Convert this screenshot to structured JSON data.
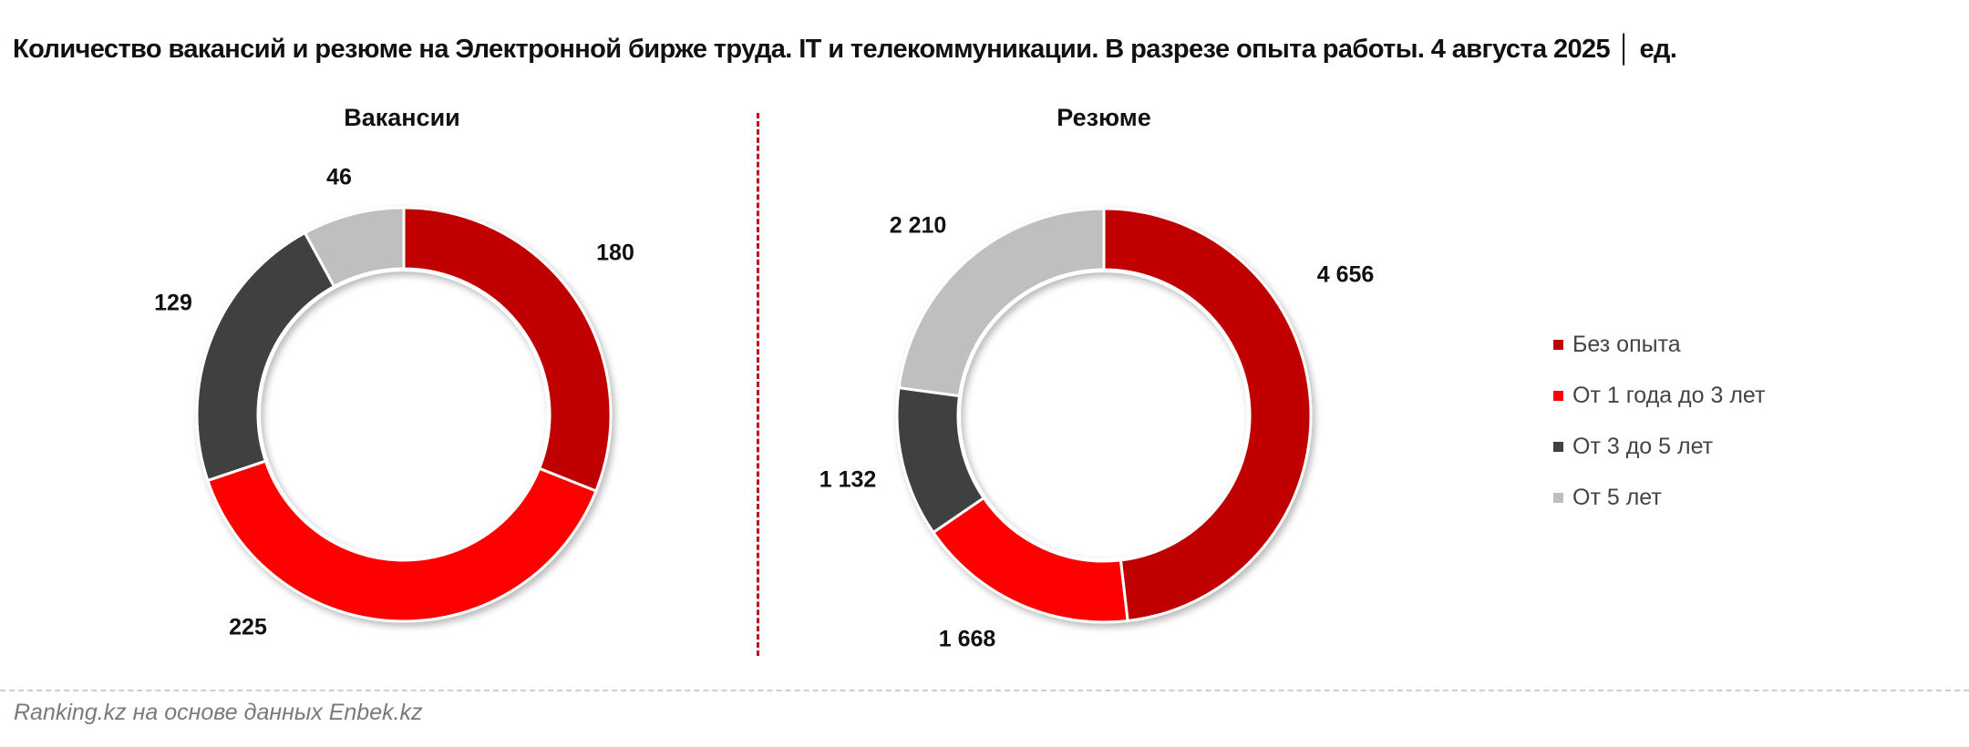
{
  "header": {
    "title": "Количество вакансий и резюме на Электронной бирже труда. IT и телекоммуникации. В разрезе опыта работы. 4 августа 2025 │ ед."
  },
  "footer": {
    "source": "Ranking.kz на основе данных Enbek.kz"
  },
  "colors": {
    "no_experience": "#C00000",
    "one_to_three": "#FF0000",
    "three_to_five": "#404040",
    "five_plus": "#BFBFBF",
    "divider": "#C0101A"
  },
  "legend": [
    {
      "label": "Без опыта",
      "color": "#C00000"
    },
    {
      "label": "От 1 года до 3 лет",
      "color": "#FF0000"
    },
    {
      "label": "От 3 до 5 лет",
      "color": "#404040"
    },
    {
      "label": "От 5 лет",
      "color": "#BFBFBF"
    }
  ],
  "chart_data": [
    {
      "type": "pie",
      "subtype": "donut",
      "title": "Вакансии",
      "categories": [
        "Без опыта",
        "От 1 года до 3 лет",
        "От 3 до 5 лет",
        "От 5 лет"
      ],
      "values": [
        180,
        225,
        129,
        46
      ],
      "value_labels": [
        "180",
        "225",
        "129",
        "46"
      ],
      "colors": [
        "#C00000",
        "#FF0000",
        "#404040",
        "#BFBFBF"
      ],
      "unit": "ед.",
      "start_angle": "12 o'clock, clockwise"
    },
    {
      "type": "pie",
      "subtype": "donut",
      "title": "Резюме",
      "categories": [
        "Без опыта",
        "От 1 года до 3 лет",
        "От 3 до 5 лет",
        "От 5 лет"
      ],
      "values": [
        4656,
        1668,
        1132,
        2210
      ],
      "value_labels": [
        "4 656",
        "1 668",
        "1 132",
        "2 210"
      ],
      "colors": [
        "#C00000",
        "#FF0000",
        "#404040",
        "#BFBFBF"
      ],
      "unit": "ед.",
      "start_angle": "12 o'clock, clockwise"
    }
  ]
}
